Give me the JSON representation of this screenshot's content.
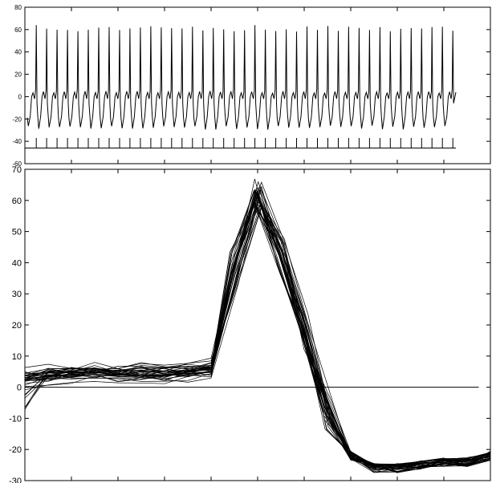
{
  "chart_data": [
    {
      "type": "line",
      "title": "",
      "xlabel": "",
      "ylabel": "",
      "ylim": [
        -60,
        80
      ],
      "yticks": [
        -60,
        -40,
        -20,
        0,
        20,
        40,
        60,
        80
      ],
      "y_tick_labels": [
        "-60",
        "-40",
        "-20",
        "0",
        "20",
        "40",
        "60",
        "80"
      ],
      "x_tick_labels": [],
      "grid": false,
      "num_spikes": 41,
      "series": [
        {
          "kind": "voltage_trace",
          "spike_peak": 64,
          "trough": -28,
          "baseline_bump": 3,
          "color": "#000000"
        },
        {
          "kind": "spike_markers",
          "baseline_level": -46,
          "marker_top": -37,
          "color": "#000000"
        }
      ]
    },
    {
      "type": "line",
      "title": "",
      "xlabel": "",
      "ylabel": "",
      "xlim": [
        0,
        20
      ],
      "ylim": [
        -30,
        70
      ],
      "yticks": [
        -30,
        -20,
        -10,
        0,
        10,
        20,
        30,
        40,
        50,
        60,
        70
      ],
      "y_tick_labels": [
        "-30",
        "-20",
        "-10",
        "0",
        "10",
        "20",
        "30",
        "40",
        "50",
        "60",
        "70"
      ],
      "x_tick_labels": [],
      "grid": false,
      "mean_waveform": {
        "x": [
          0,
          1,
          2,
          3,
          4,
          5,
          6,
          7,
          8,
          9,
          10,
          11,
          12,
          13,
          14,
          15,
          16,
          17,
          18,
          19,
          20
        ],
        "y": [
          3,
          4,
          4.5,
          5,
          4.5,
          4.5,
          4.5,
          5,
          6,
          38,
          64,
          42,
          18,
          -8,
          -22,
          -26,
          -26,
          -25,
          -24,
          -24,
          -22
        ]
      },
      "overlay_count": 35,
      "zero_line": {
        "y": 0,
        "x_end": 19.5
      },
      "color": "#000000"
    }
  ]
}
